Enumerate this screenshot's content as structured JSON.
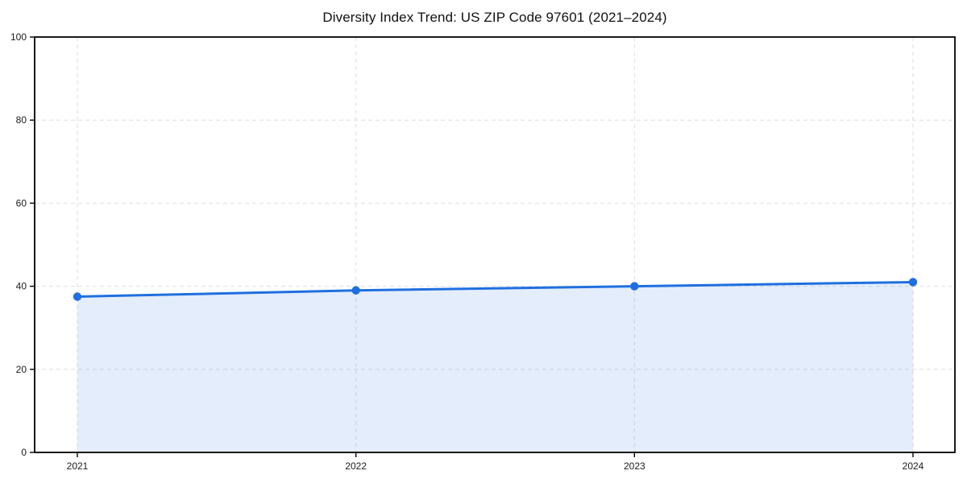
{
  "page": {
    "background": "#ffffff"
  },
  "chart_data": {
    "type": "area",
    "title": "Diversity Index Trend: US ZIP Code 97601 (2021–2024)",
    "x": [
      "2021",
      "2022",
      "2023",
      "2024"
    ],
    "series": [
      {
        "name": "Diversity Index",
        "values": [
          37.5,
          39,
          40,
          41
        ]
      }
    ],
    "xlabel": "",
    "ylabel": "",
    "ylim": [
      0,
      100
    ],
    "yticks": [
      0,
      20,
      40,
      60,
      80,
      100
    ],
    "grid": true,
    "grid_style": "dashed",
    "legend": "none",
    "colors": {
      "line": "#1f6fe0",
      "marker": "#1f6fe0",
      "fill": "rgba(31, 111, 224, 0.12)",
      "grid": "#dedede",
      "axis": "#000000",
      "text": "#1a1a1a",
      "background": "#ffffff"
    }
  }
}
